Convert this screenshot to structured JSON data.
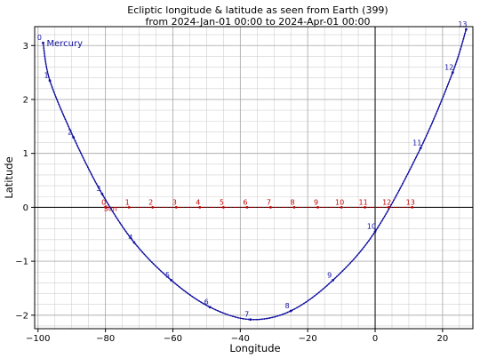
{
  "chart_data": {
    "type": "line",
    "title_line1": "Ecliptic longitude & latitude as seen from Earth (399)",
    "title_line2": "from 2024-Jan-01 00:00 to 2024-Apr-01 00:00",
    "xlabel": "Longitude",
    "ylabel": "Latitude",
    "xlim": [
      -101,
      29
    ],
    "ylim": [
      -2.25,
      3.35
    ],
    "xticks": [
      -100,
      -80,
      -60,
      -40,
      -20,
      0,
      20
    ],
    "xtick_labels": [
      "−100",
      "−80",
      "−60",
      "−40",
      "−20",
      "0",
      "20"
    ],
    "yticks": [
      -2,
      -1,
      0,
      1,
      2,
      3
    ],
    "ytick_labels": [
      "−2",
      "−1",
      "0",
      "1",
      "2",
      "3"
    ],
    "minor_grid_x_step": 5,
    "minor_grid_y_step": 0.2,
    "grid": true,
    "series": [
      {
        "name": "Mercury",
        "color": "#1010a0",
        "point_labels": [
          "0",
          "1",
          "2",
          "3",
          "4",
          "5",
          "6",
          "7",
          "8",
          "9",
          "10",
          "11",
          "12",
          "13"
        ],
        "points": [
          {
            "x": -98.5,
            "y": 3.05
          },
          {
            "x": -96.5,
            "y": 2.35
          },
          {
            "x": -89.5,
            "y": 1.3
          },
          {
            "x": -81.0,
            "y": 0.25
          },
          {
            "x": -71.5,
            "y": -0.65
          },
          {
            "x": -60.5,
            "y": -1.35
          },
          {
            "x": -49.0,
            "y": -1.85
          },
          {
            "x": -37.0,
            "y": -2.08
          },
          {
            "x": -25.0,
            "y": -1.92
          },
          {
            "x": -12.5,
            "y": -1.35
          },
          {
            "x": 0.0,
            "y": -0.45
          },
          {
            "x": 13.5,
            "y": 1.1
          },
          {
            "x": 23.0,
            "y": 2.5
          },
          {
            "x": 27.0,
            "y": 3.3
          }
        ]
      },
      {
        "name": "Sun",
        "color": "#c00000",
        "point_labels": [
          "0",
          "1",
          "2",
          "3",
          "4",
          "5",
          "6",
          "7",
          "8",
          "9",
          "10",
          "11",
          "12",
          "13"
        ],
        "points": [
          {
            "x": -80.0,
            "y": 0.0
          },
          {
            "x": -73.0,
            "y": 0.0
          },
          {
            "x": -66.0,
            "y": 0.0
          },
          {
            "x": -59.0,
            "y": 0.0
          },
          {
            "x": -52.0,
            "y": 0.0
          },
          {
            "x": -45.0,
            "y": 0.0
          },
          {
            "x": -38.0,
            "y": 0.0
          },
          {
            "x": -31.0,
            "y": 0.0
          },
          {
            "x": -24.0,
            "y": 0.0
          },
          {
            "x": -17.0,
            "y": 0.0
          },
          {
            "x": -10.0,
            "y": 0.0
          },
          {
            "x": -3.0,
            "y": 0.0
          },
          {
            "x": 4.0,
            "y": 0.0
          },
          {
            "x": 11.0,
            "y": 0.0
          }
        ]
      }
    ]
  }
}
